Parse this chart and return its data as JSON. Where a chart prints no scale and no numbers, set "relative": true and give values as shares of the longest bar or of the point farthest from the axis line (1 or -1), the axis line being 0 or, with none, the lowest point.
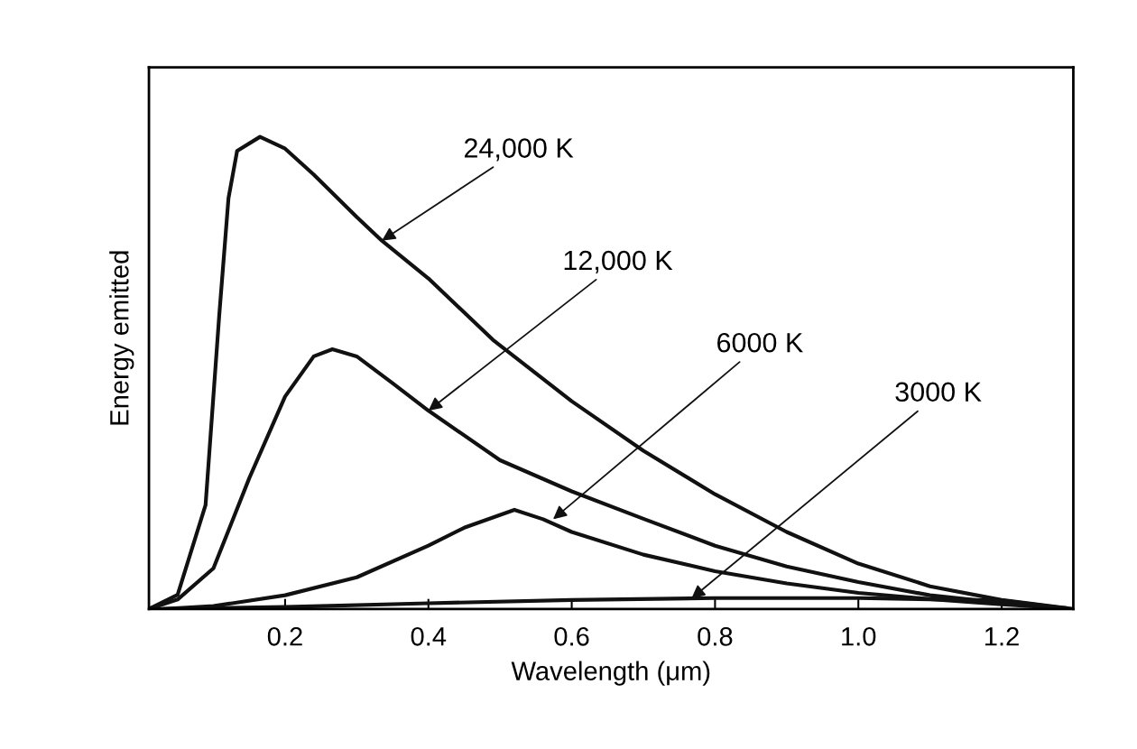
{
  "chart_data": {
    "type": "line",
    "xlabel": "Wavelength (μm)",
    "ylabel": "Energy emitted",
    "relative": true,
    "tick_labels": "x",
    "grid": false,
    "xlim": [
      0.01,
      1.3
    ],
    "xticks": [
      0.2,
      0.4,
      0.6,
      0.8,
      {
        "value": 1.0,
        "label": "1.0"
      },
      1.2
    ],
    "series": [
      {
        "color": "#111111",
        "x": [
          0.01,
          0.05,
          0.089,
          0.108,
          0.121,
          0.133,
          0.165,
          0.2,
          0.24,
          0.3,
          0.335,
          0.4,
          0.49,
          0.6,
          0.7,
          0.8,
          0.9,
          1.0,
          1.1,
          1.2,
          1.3
        ],
        "values": [
          0,
          0.03,
          0.22,
          0.62,
          0.87,
          0.97,
          1.0,
          0.975,
          0.92,
          0.83,
          0.78,
          0.7,
          0.57,
          0.44,
          0.335,
          0.243,
          0.163,
          0.096,
          0.048,
          0.019,
          0
        ]
      },
      {
        "color": "#111111",
        "x": [
          0.01,
          0.05,
          0.1,
          0.15,
          0.2,
          0.24,
          0.266,
          0.3,
          0.35,
          0.4,
          0.5,
          0.6,
          0.7,
          0.8,
          0.9,
          1.0,
          1.1,
          1.2,
          1.29
        ],
        "values": [
          0,
          0.02,
          0.086,
          0.277,
          0.45,
          0.535,
          0.55,
          0.535,
          0.478,
          0.42,
          0.315,
          0.249,
          0.191,
          0.134,
          0.09,
          0.057,
          0.029,
          0.013,
          0.002
        ]
      },
      {
        "color": "#111111",
        "x": [
          0.03,
          0.1,
          0.2,
          0.3,
          0.4,
          0.45,
          0.52,
          0.56,
          0.6,
          0.7,
          0.8,
          0.9,
          1.0,
          1.1,
          1.2,
          1.29
        ],
        "values": [
          0,
          0.006,
          0.029,
          0.067,
          0.134,
          0.172,
          0.21,
          0.19,
          0.163,
          0.115,
          0.08,
          0.054,
          0.034,
          0.021,
          0.01,
          0.001
        ]
      },
      {
        "color": "#111111",
        "x": [
          0.02,
          0.2,
          0.4,
          0.6,
          0.8,
          1.0,
          1.2,
          1.28
        ],
        "values": [
          0,
          0.004,
          0.012,
          0.019,
          0.023,
          0.023,
          0.018,
          0.003
        ]
      }
    ],
    "annotations": [
      {
        "text": "24,000 K",
        "x": 0.335,
        "y": 0.78
      },
      {
        "text": "12,000 K",
        "x": 0.4,
        "y": 0.42
      },
      {
        "text": "6000 K",
        "x": 0.574,
        "y": 0.19
      },
      {
        "text": "3000 K",
        "x": 0.767,
        "y": 0.022
      }
    ]
  }
}
